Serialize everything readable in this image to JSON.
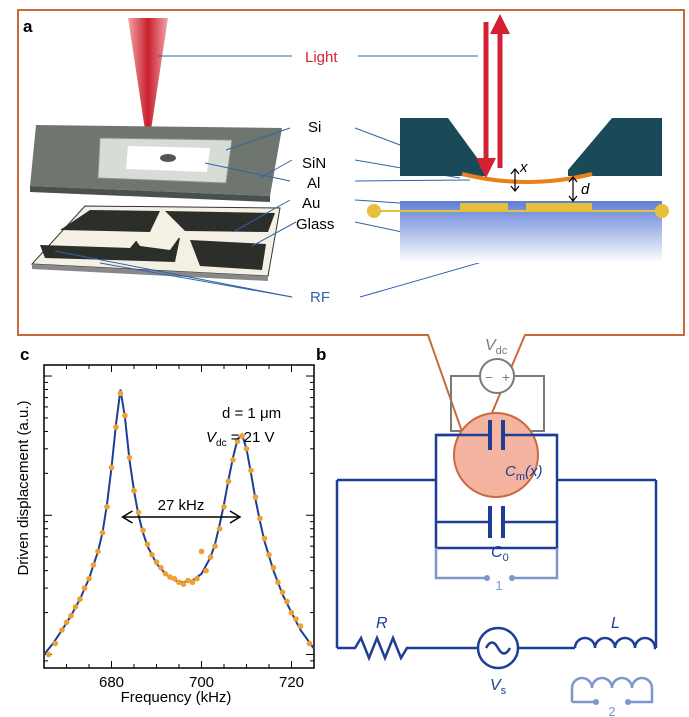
{
  "panels": {
    "a": "a",
    "b": "b",
    "c": "c"
  },
  "panel_a": {
    "labels": {
      "light": "Light",
      "si": "Si",
      "sin": "SiN",
      "al": "Al",
      "au": "Au",
      "glass": "Glass",
      "rf": "RF",
      "x": "x",
      "d": "d"
    }
  },
  "panel_b": {
    "vdc": "V",
    "vdc_sub": "dc",
    "minus": "−",
    "plus": "+",
    "cm": "C",
    "cm_sub": "m",
    "cm_arg": "(x)",
    "c0": "C",
    "c0_sub": "0",
    "port1": "1",
    "port2": "2",
    "r": "R",
    "l": "L",
    "vs": "V",
    "vs_sub": "s"
  },
  "chart_data": {
    "type": "line",
    "xlabel": "Frequency (kHz)",
    "ylabel": "Driven displacement (a.u.)",
    "xlim": [
      665,
      725
    ],
    "yscale": "log",
    "xticks": [
      680,
      700,
      720
    ],
    "annotation_d": "d = 1 μm",
    "annotation_vdc": "V",
    "annotation_vdc_sub": "dc",
    "annotation_vdc_val": " = 21 V",
    "annotation_width": "27 kHz",
    "series": [
      {
        "kind": "fit",
        "x": [
          665,
          667,
          669,
          671,
          673,
          675,
          677,
          678,
          679,
          680,
          681,
          682,
          683,
          684,
          685,
          686,
          687,
          688,
          690,
          692,
          694,
          696,
          698,
          700,
          702,
          703,
          704,
          705,
          706,
          707,
          708,
          709,
          710,
          711,
          712,
          713,
          714,
          716,
          718,
          720,
          722,
          725
        ],
        "y": [
          0.1,
          0.12,
          0.15,
          0.19,
          0.25,
          0.35,
          0.55,
          0.75,
          1.2,
          2.2,
          4.5,
          8.0,
          5.0,
          2.5,
          1.5,
          1.0,
          0.75,
          0.6,
          0.45,
          0.38,
          0.34,
          0.33,
          0.34,
          0.38,
          0.5,
          0.62,
          0.85,
          1.2,
          1.8,
          2.6,
          3.5,
          3.8,
          3.0,
          2.0,
          1.3,
          0.9,
          0.65,
          0.4,
          0.27,
          0.2,
          0.15,
          0.11
        ]
      },
      {
        "kind": "data",
        "x": [
          666,
          667.5,
          669,
          670,
          671,
          672,
          673,
          674,
          675,
          676,
          677,
          678,
          679,
          680,
          681,
          682,
          683,
          684,
          685,
          686,
          687,
          688,
          689,
          690,
          691,
          692,
          693,
          694,
          695,
          696,
          697,
          698,
          699,
          700,
          701,
          702,
          703,
          704,
          705,
          706,
          707,
          708,
          709,
          710,
          711,
          712,
          713,
          714,
          715,
          716,
          717,
          718,
          719,
          720,
          721,
          722,
          724
        ],
        "y": [
          0.1,
          0.12,
          0.15,
          0.17,
          0.19,
          0.22,
          0.25,
          0.3,
          0.35,
          0.44,
          0.55,
          0.75,
          1.15,
          2.2,
          4.3,
          7.5,
          5.2,
          2.6,
          1.5,
          1.05,
          0.78,
          0.62,
          0.52,
          0.46,
          0.42,
          0.38,
          0.36,
          0.35,
          0.33,
          0.32,
          0.34,
          0.33,
          0.35,
          0.55,
          0.4,
          0.5,
          0.6,
          0.8,
          1.15,
          1.75,
          2.5,
          3.4,
          3.7,
          3.0,
          2.1,
          1.35,
          0.95,
          0.68,
          0.52,
          0.42,
          0.33,
          0.28,
          0.24,
          0.2,
          0.18,
          0.16,
          0.12
        ]
      }
    ]
  },
  "colors": {
    "red": "#d32035",
    "navy": "#1e3e96",
    "lightblue": "#7d96cc",
    "gray": "#7a7a7a",
    "orange_border": "#c86a3a",
    "pink_fill": "#f4b4a0",
    "dark_teal": "#1a4a58",
    "gold": "#e6c03a",
    "data_orange": "#f0a030",
    "rf_blue": "#2f64aa"
  }
}
